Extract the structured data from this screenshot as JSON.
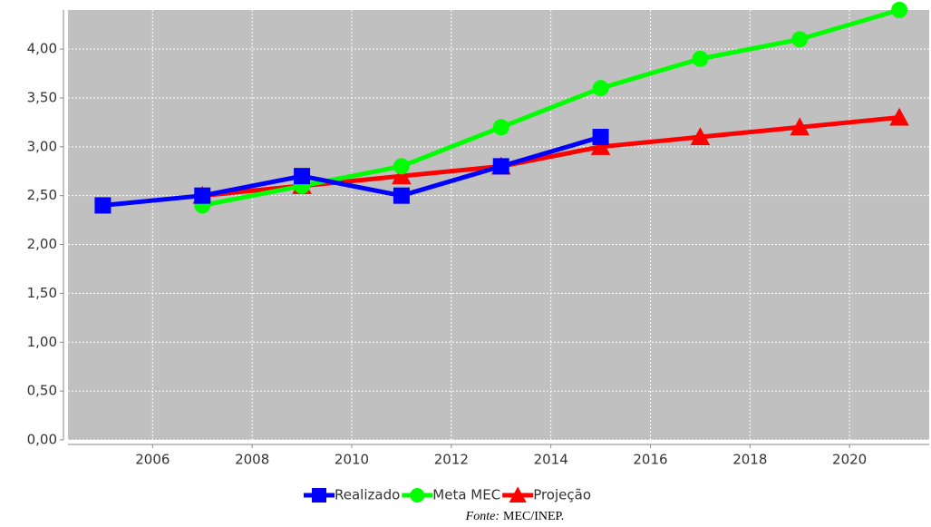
{
  "chart_data": {
    "type": "line",
    "xlim": [
      2004.3,
      2021.6
    ],
    "xticks": [
      2006,
      2008,
      2010,
      2012,
      2014,
      2016,
      2018,
      2020
    ],
    "ylim": [
      0,
      4.4
    ],
    "yticks": [
      {
        "value": 0,
        "label": "0,00"
      },
      {
        "value": 0.5,
        "label": "0,50"
      },
      {
        "value": 1,
        "label": "1,00"
      },
      {
        "value": 1.5,
        "label": "1,50"
      },
      {
        "value": 2,
        "label": "2,00"
      },
      {
        "value": 2.5,
        "label": "2,50"
      },
      {
        "value": 3,
        "label": "3,00"
      },
      {
        "value": 3.5,
        "label": "3,50"
      },
      {
        "value": 4,
        "label": "4,00"
      }
    ],
    "grid": true,
    "legend": "bottom",
    "series": [
      {
        "name": "Realizado",
        "color": "#0000ff",
        "marker": "square",
        "x": [
          2005,
          2007,
          2009,
          2011,
          2013,
          2015
        ],
        "values": [
          2.4,
          2.5,
          2.7,
          2.5,
          2.8,
          3.1
        ]
      },
      {
        "name": "Meta MEC",
        "color": "#00ff00",
        "marker": "circle",
        "x": [
          2007,
          2009,
          2011,
          2013,
          2015,
          2017,
          2019,
          2021
        ],
        "values": [
          2.4,
          2.6,
          2.8,
          3.2,
          3.6,
          3.9,
          4.1,
          4.4
        ]
      },
      {
        "name": "Projeção",
        "color": "#ff0000",
        "marker": "triangle",
        "x": [
          2007,
          2009,
          2011,
          2013,
          2015,
          2017,
          2019,
          2021
        ],
        "values": [
          2.5,
          2.6,
          2.7,
          2.8,
          3.0,
          3.1,
          3.2,
          3.3
        ]
      }
    ],
    "source_label": "Fonte:",
    "source": "MEC/INEP."
  }
}
